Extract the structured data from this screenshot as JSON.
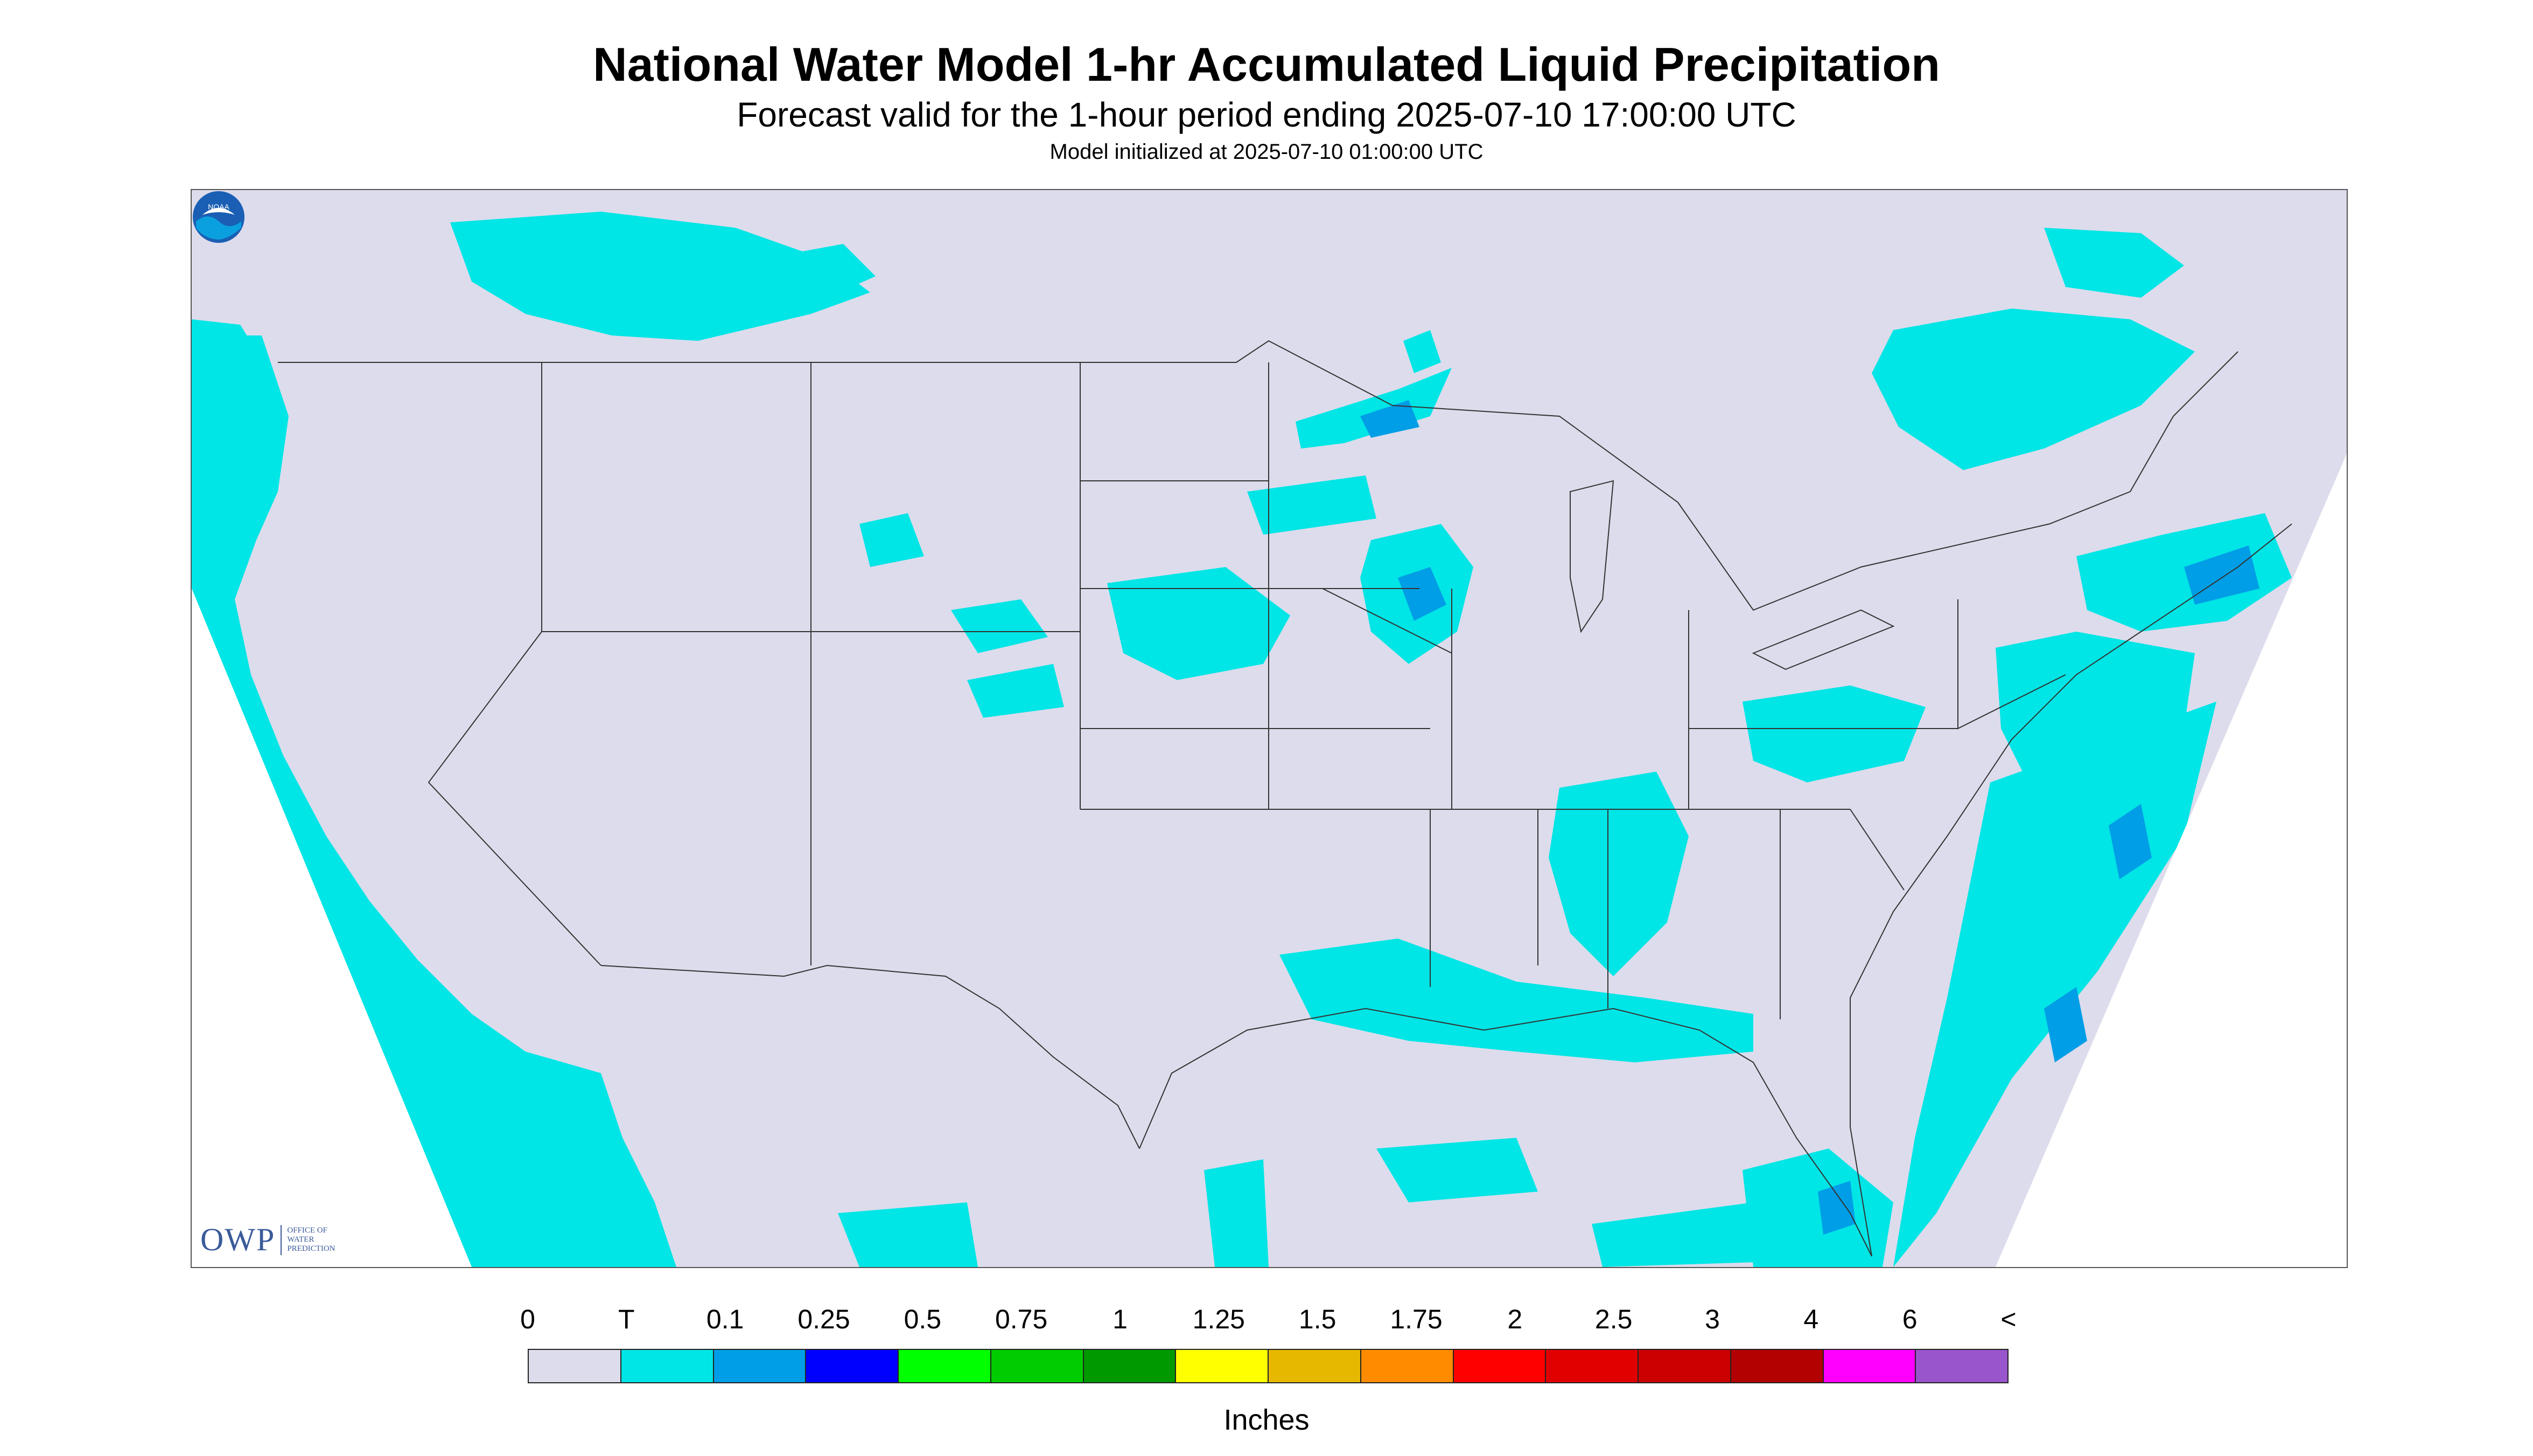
{
  "header": {
    "title": "National Water Model 1-hr Accumulated Liquid Precipitation",
    "subtitle": "Forecast valid for the 1-hour period ending 2025-07-10 17:00:00 UTC",
    "init": "Model initialized at 2025-07-10 01:00:00 UTC"
  },
  "map": {
    "background_color": "#dcdcec",
    "outside_color": "#ffffff",
    "trace_color": "#00e5e5",
    "boundary_color": "#333333",
    "logos": {
      "owp_mark": "OWP",
      "owp_text": [
        "OFFICE OF",
        "WATER",
        "PREDICTION"
      ],
      "noaa_mark": "NOAA"
    }
  },
  "legend": {
    "labels": [
      "0",
      "T",
      "0.1",
      "0.25",
      "0.5",
      "0.75",
      "1",
      "1.25",
      "1.5",
      "1.75",
      "2",
      "2.5",
      "3",
      "4",
      "6",
      "<"
    ],
    "colors": [
      "#dcdcec",
      "#00e5e5",
      "#009ee6",
      "#0000ff",
      "#00ff00",
      "#00cc00",
      "#009900",
      "#ffff00",
      "#e6b800",
      "#ff8c00",
      "#ff0000",
      "#e00000",
      "#cc0000",
      "#b30000",
      "#ff00ff",
      "#9955cc"
    ],
    "units": "Inches"
  }
}
